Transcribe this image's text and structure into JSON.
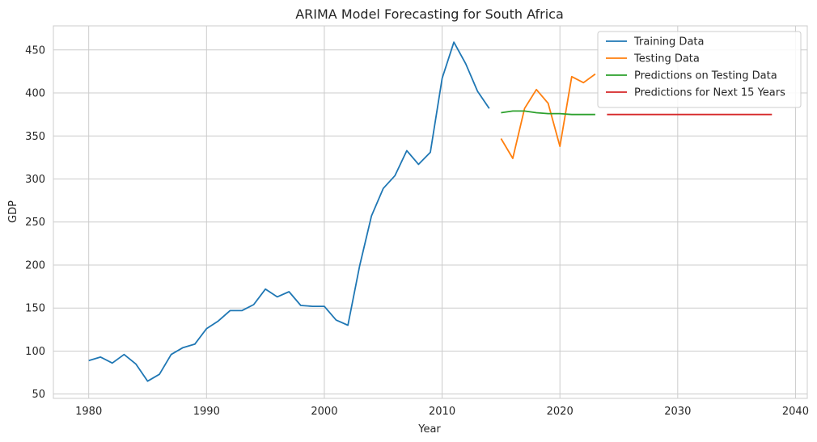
{
  "chart_data": {
    "type": "line",
    "title": "ARIMA Model Forecasting for South Africa",
    "xlabel": "Year",
    "ylabel": "GDP",
    "xlim": [
      1977,
      2041
    ],
    "ylim": [
      45,
      478
    ],
    "x_ticks": [
      1980,
      1990,
      2000,
      2010,
      2020,
      2030,
      2040
    ],
    "y_ticks": [
      50,
      100,
      150,
      200,
      250,
      300,
      350,
      400,
      450
    ],
    "grid": true,
    "legend_position": "top-right",
    "series": [
      {
        "name": "Training Data",
        "color": "#1f77b4",
        "x": [
          1980,
          1981,
          1982,
          1983,
          1984,
          1985,
          1986,
          1987,
          1988,
          1989,
          1990,
          1991,
          1992,
          1993,
          1994,
          1995,
          1996,
          1997,
          1998,
          1999,
          2000,
          2001,
          2002,
          2003,
          2004,
          2005,
          2006,
          2007,
          2008,
          2009,
          2010,
          2011,
          2012,
          2013,
          2014
        ],
        "y": [
          89,
          93,
          86,
          96,
          85,
          65,
          73,
          96,
          104,
          108,
          126,
          135,
          147,
          147,
          154,
          172,
          163,
          169,
          153,
          152,
          152,
          136,
          130,
          199,
          257,
          289,
          304,
          333,
          317,
          331,
          417,
          459,
          434,
          402,
          382
        ]
      },
      {
        "name": "Testing Data",
        "color": "#ff7f0e",
        "x": [
          2015,
          2016,
          2017,
          2018,
          2019,
          2020,
          2021,
          2022,
          2023
        ],
        "y": [
          347,
          324,
          382,
          404,
          388,
          338,
          419,
          412,
          422
        ]
      },
      {
        "name": "Predictions on Testing Data",
        "color": "#2ca02c",
        "x": [
          2015,
          2016,
          2017,
          2018,
          2019,
          2020,
          2021,
          2022,
          2023
        ],
        "y": [
          377,
          379,
          379,
          377,
          376,
          376,
          375,
          375,
          375
        ]
      },
      {
        "name": "Predictions for Next 15 Years",
        "color": "#d62728",
        "x": [
          2024,
          2025,
          2026,
          2027,
          2028,
          2029,
          2030,
          2031,
          2032,
          2033,
          2034,
          2035,
          2036,
          2037,
          2038
        ],
        "y": [
          375,
          375,
          375,
          375,
          375,
          375,
          375,
          375,
          375,
          375,
          375,
          375,
          375,
          375,
          375
        ]
      }
    ]
  }
}
